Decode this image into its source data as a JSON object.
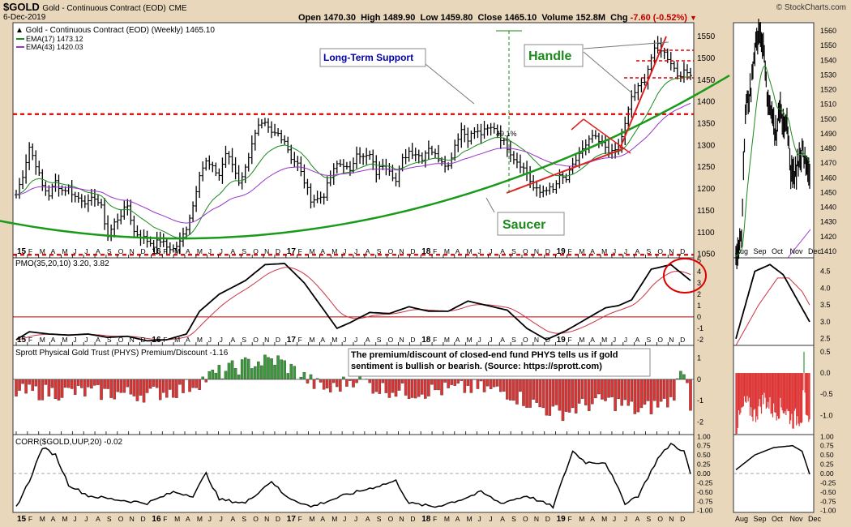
{
  "header": {
    "symbol": "$GOLD",
    "name": "Gold - Continuous Contract (EOD)",
    "exchange": "CME",
    "date": "6-Dec-2019",
    "watermark": "© StockCharts.com",
    "open_label": "Open",
    "open": "1470.30",
    "high_label": "High",
    "high": "1489.90",
    "low_label": "Low",
    "low": "1459.80",
    "close_label": "Close",
    "close": "1465.10",
    "volume_label": "Volume",
    "volume": "152.8M",
    "chg_label": "Chg",
    "chg": "-7.60 (-0.52%)",
    "chg_arrow": "▼"
  },
  "colors": {
    "background": "#e9d7bc",
    "panel": "#ffffff",
    "ema17": "#1a8a1a",
    "ema43": "#9933cc",
    "support": "#dd0000",
    "saucer": "#1a9a1a",
    "trend": "#dd2222",
    "histogram_up": "#3a9a3a",
    "histogram_down": "#dd3333",
    "label_blue": "#0000aa",
    "label_green": "#1a8a1a"
  },
  "chart_data": [
    {
      "type": "line",
      "id": "price",
      "title": "Gold - Continuous Contract (EOD) (Weekly) 1465.10",
      "series": [
        {
          "name": "EMA(17) 1473.12",
          "legend": "EMA(17) 1473.12"
        },
        {
          "name": "EMA(43) 1420.03",
          "legend": "EMA(43) 1420.03"
        }
      ],
      "x_range": [
        "2015-01",
        "2019-12"
      ],
      "ylim": [
        1040,
        1580
      ],
      "y_ticks": [
        1050,
        1100,
        1150,
        1200,
        1250,
        1300,
        1350,
        1400,
        1450,
        1500,
        1550
      ],
      "x_ticks": [
        "15",
        "F",
        "M",
        "A",
        "M",
        "J",
        "J",
        "A",
        "S",
        "O",
        "N",
        "D",
        "16",
        "F",
        "M",
        "A",
        "M",
        "J",
        "J",
        "A",
        "S",
        "O",
        "N",
        "D",
        "17",
        "F",
        "M",
        "A",
        "M",
        "J",
        "J",
        "A",
        "S",
        "O",
        "N",
        "D",
        "18",
        "F",
        "M",
        "A",
        "M",
        "J",
        "J",
        "A",
        "S",
        "O",
        "N",
        "D",
        "19",
        "F",
        "M",
        "A",
        "M",
        "J",
        "J",
        "A",
        "S",
        "O",
        "N",
        "D"
      ],
      "close_points": [
        [
          0,
          1185
        ],
        [
          2,
          1230
        ],
        [
          4,
          1295
        ],
        [
          6,
          1255
        ],
        [
          8,
          1205
        ],
        [
          10,
          1185
        ],
        [
          12,
          1215
        ],
        [
          14,
          1195
        ],
        [
          16,
          1200
        ],
        [
          18,
          1180
        ],
        [
          20,
          1175
        ],
        [
          22,
          1165
        ],
        [
          24,
          1180
        ],
        [
          26,
          1155
        ],
        [
          28,
          1090
        ],
        [
          30,
          1120
        ],
        [
          32,
          1140
        ],
        [
          34,
          1160
        ],
        [
          36,
          1100
        ],
        [
          38,
          1090
        ],
        [
          40,
          1080
        ],
        [
          42,
          1070
        ],
        [
          44,
          1080
        ],
        [
          46,
          1065
        ],
        [
          48,
          1060
        ],
        [
          50,
          1075
        ],
        [
          52,
          1110
        ],
        [
          54,
          1160
        ],
        [
          56,
          1235
        ],
        [
          58,
          1260
        ],
        [
          60,
          1245
        ],
        [
          62,
          1230
        ],
        [
          64,
          1280
        ],
        [
          66,
          1255
        ],
        [
          68,
          1215
        ],
        [
          70,
          1245
        ],
        [
          72,
          1305
        ],
        [
          74,
          1340
        ],
        [
          76,
          1345
        ],
        [
          78,
          1325
        ],
        [
          80,
          1325
        ],
        [
          82,
          1310
        ],
        [
          84,
          1270
        ],
        [
          86,
          1255
        ],
        [
          88,
          1215
        ],
        [
          90,
          1175
        ],
        [
          92,
          1175
        ],
        [
          94,
          1185
        ],
        [
          96,
          1225
        ],
        [
          98,
          1255
        ],
        [
          100,
          1255
        ],
        [
          102,
          1235
        ],
        [
          104,
          1285
        ],
        [
          106,
          1270
        ],
        [
          108,
          1275
        ],
        [
          110,
          1235
        ],
        [
          112,
          1255
        ],
        [
          114,
          1245
        ],
        [
          116,
          1215
        ],
        [
          118,
          1265
        ],
        [
          120,
          1285
        ],
        [
          122,
          1280
        ],
        [
          124,
          1270
        ],
        [
          126,
          1295
        ],
        [
          128,
          1275
        ],
        [
          130,
          1265
        ],
        [
          132,
          1250
        ],
        [
          134,
          1300
        ],
        [
          136,
          1335
        ],
        [
          138,
          1315
        ],
        [
          140,
          1330
        ],
        [
          142,
          1325
        ],
        [
          144,
          1335
        ],
        [
          146,
          1340
        ],
        [
          148,
          1315
        ],
        [
          150,
          1295
        ],
        [
          152,
          1270
        ],
        [
          154,
          1255
        ],
        [
          156,
          1235
        ],
        [
          158,
          1200
        ],
        [
          160,
          1190
        ],
        [
          162,
          1200
        ],
        [
          164,
          1195
        ],
        [
          166,
          1225
        ],
        [
          168,
          1220
        ],
        [
          170,
          1250
        ],
        [
          172,
          1280
        ],
        [
          174,
          1295
        ],
        [
          176,
          1320
        ],
        [
          178,
          1305
        ],
        [
          180,
          1295
        ],
        [
          182,
          1280
        ],
        [
          184,
          1295
        ],
        [
          186,
          1345
        ],
        [
          188,
          1410
        ],
        [
          190,
          1430
        ],
        [
          192,
          1450
        ],
        [
          194,
          1500
        ],
        [
          196,
          1530
        ],
        [
          198,
          1510
        ],
        [
          200,
          1490
        ],
        [
          202,
          1460
        ],
        [
          204,
          1465
        ],
        [
          206,
          1465
        ]
      ],
      "annotations": {
        "long_term_support": "Long-Term Support",
        "handle": "Handle",
        "saucer": "Saucer",
        "rally_pct": "49.1%"
      },
      "support_level": 1370,
      "lower_support_level": 1047
    },
    {
      "type": "line",
      "id": "price_daily",
      "ylim": [
        1405,
        1565
      ],
      "y_ticks": [
        1410,
        1420,
        1430,
        1440,
        1450,
        1460,
        1470,
        1480,
        1490,
        1500,
        1510,
        1520,
        1530,
        1540,
        1550,
        1560
      ],
      "x_ticks": [
        "Aug",
        "Sep",
        "Oct",
        "Nov",
        "Dec"
      ]
    },
    {
      "type": "line",
      "id": "pmo",
      "title": "PMO(35,20,10) 3.20, 3.82",
      "series": [
        {
          "name": "PMO",
          "value_label": "3.20"
        },
        {
          "name": "Signal",
          "value_label": "3.82"
        }
      ],
      "ylim": [
        -2.5,
        5.2
      ],
      "y_ticks": [
        -2,
        -1,
        0,
        1,
        2,
        3,
        4,
        5
      ],
      "daily_y_ticks": [
        "2.5",
        "3.0",
        "3.5",
        "4.0",
        "4.5"
      ]
    },
    {
      "type": "bar",
      "id": "phys",
      "title": "Sprott Physical Gold Trust (PHYS) Premium/Discount -1.16",
      "annotation": "The premium/discount of closed-end fund PHYS tells us if gold sentiment is bullish or bearish. (Source: https://sprott.com)",
      "ylim": [
        -2.6,
        1.6
      ],
      "y_ticks": [
        -2,
        -1,
        0,
        1
      ],
      "daily_y_ticks": [
        "0.5",
        "0.0",
        "-0.5",
        "-1.0"
      ]
    },
    {
      "type": "line",
      "id": "corr",
      "title": "CORR($GOLD,UUP,20) -0.02",
      "ylim": [
        -1.05,
        1.05
      ],
      "y_ticks": [
        "1.00",
        "0.75",
        "0.50",
        "0.25",
        "0.00",
        "-0.25",
        "-0.50",
        "-0.75",
        "-1.00"
      ]
    }
  ]
}
